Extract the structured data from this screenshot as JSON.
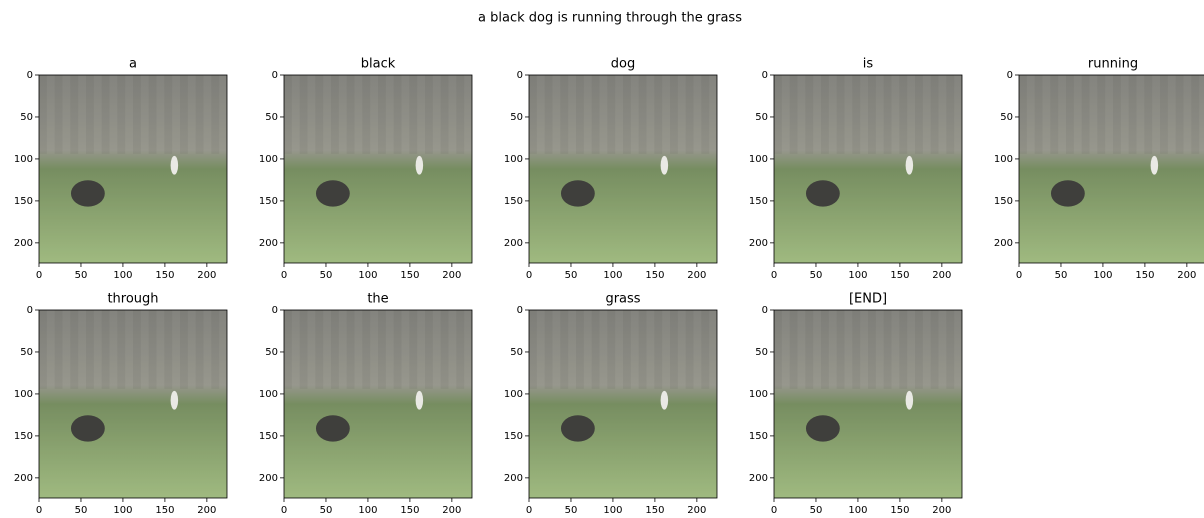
{
  "title": "a black dog is running through the grass",
  "chart_data": [
    {
      "type": "image",
      "title": "a",
      "xlim": [
        0,
        224
      ],
      "ylim": [
        224,
        0
      ],
      "xticks": [
        0,
        50,
        100,
        150,
        200
      ],
      "yticks": [
        0,
        50,
        100,
        150,
        200
      ]
    },
    {
      "type": "image",
      "title": "black",
      "xlim": [
        0,
        224
      ],
      "ylim": [
        224,
        0
      ],
      "xticks": [
        0,
        50,
        100,
        150,
        200
      ],
      "yticks": [
        0,
        50,
        100,
        150,
        200
      ]
    },
    {
      "type": "image",
      "title": "dog",
      "xlim": [
        0,
        224
      ],
      "ylim": [
        224,
        0
      ],
      "xticks": [
        0,
        50,
        100,
        150,
        200
      ],
      "yticks": [
        0,
        50,
        100,
        150,
        200
      ]
    },
    {
      "type": "image",
      "title": "is",
      "xlim": [
        0,
        224
      ],
      "ylim": [
        224,
        0
      ],
      "xticks": [
        0,
        50,
        100,
        150,
        200
      ],
      "yticks": [
        0,
        50,
        100,
        150,
        200
      ]
    },
    {
      "type": "image",
      "title": "running",
      "xlim": [
        0,
        224
      ],
      "ylim": [
        224,
        0
      ],
      "xticks": [
        0,
        50,
        100,
        150,
        200
      ],
      "yticks": [
        0,
        50,
        100,
        150,
        200
      ]
    },
    {
      "type": "image",
      "title": "through",
      "xlim": [
        0,
        224
      ],
      "ylim": [
        224,
        0
      ],
      "xticks": [
        0,
        50,
        100,
        150,
        200
      ],
      "yticks": [
        0,
        50,
        100,
        150,
        200
      ]
    },
    {
      "type": "image",
      "title": "the",
      "xlim": [
        0,
        224
      ],
      "ylim": [
        224,
        0
      ],
      "xticks": [
        0,
        50,
        100,
        150,
        200
      ],
      "yticks": [
        0,
        50,
        100,
        150,
        200
      ]
    },
    {
      "type": "image",
      "title": "grass",
      "xlim": [
        0,
        224
      ],
      "ylim": [
        224,
        0
      ],
      "xticks": [
        0,
        50,
        100,
        150,
        200
      ],
      "yticks": [
        0,
        50,
        100,
        150,
        200
      ]
    },
    {
      "type": "image",
      "title": "[END]",
      "xlim": [
        0,
        224
      ],
      "ylim": [
        224,
        0
      ],
      "xticks": [
        0,
        50,
        100,
        150,
        200
      ],
      "yticks": [
        0,
        50,
        100,
        150,
        200
      ]
    }
  ]
}
